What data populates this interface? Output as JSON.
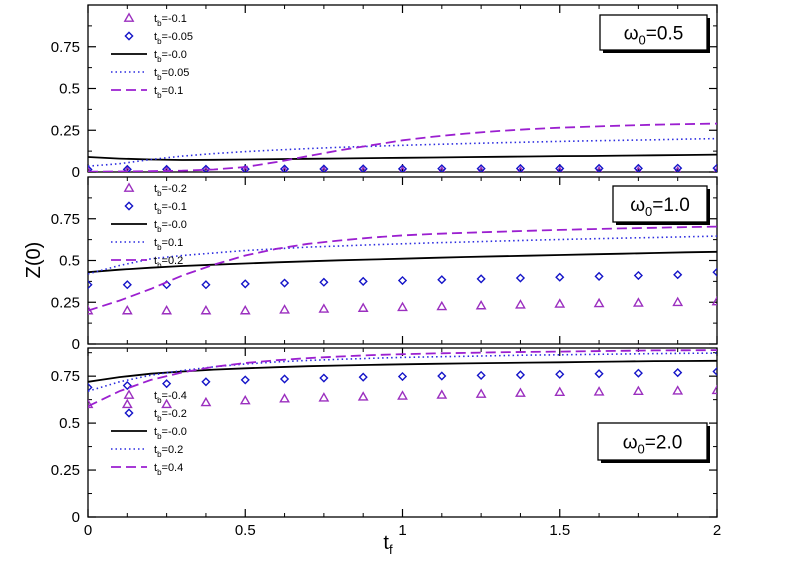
{
  "chart_data": {
    "type": "line",
    "xlabel": "t",
    "xlabel_sub": "f",
    "ylabel": "Z(0)",
    "xlim": [
      0,
      2
    ],
    "x_ticks": [
      "0",
      "0.5",
      "1",
      "1.5",
      "2"
    ],
    "line_x": [
      0,
      0.1,
      0.2,
      0.3,
      0.4,
      0.5,
      0.6,
      0.7,
      0.8,
      0.9,
      1.0,
      1.1,
      1.2,
      1.3,
      1.4,
      1.5,
      1.6,
      1.7,
      1.8,
      1.9,
      2.0
    ],
    "marker_x": [
      0,
      0.125,
      0.25,
      0.375,
      0.5,
      0.625,
      0.75,
      0.875,
      1.0,
      1.125,
      1.25,
      1.375,
      1.5,
      1.625,
      1.75,
      1.875,
      2.0
    ],
    "colors": {
      "triangle": "#9b2fbf",
      "diamond": "#1414c8",
      "solid": "#000000",
      "dotted": "#2a2ae0",
      "dashed": "#9b1fd0"
    },
    "panels": [
      {
        "name": "omega-0.5",
        "omega_label": "ω",
        "omega_sub": "0",
        "omega_value": "=0.5",
        "ylim": [
          0,
          1
        ],
        "y_ticks": [
          "0",
          "0.25",
          "0.5",
          "0.75"
        ],
        "y_tick_values": [
          0,
          0.25,
          0.5,
          0.75
        ],
        "series": [
          {
            "name": "t_b=-0.1",
            "label_main": "t",
            "label_sub": "b",
            "label_tail": "=-0.1",
            "style": "triangle",
            "values": [
              0.003,
              0.003,
              0.003,
              0.003,
              0.003,
              0.003,
              0.003,
              0.003,
              0.003,
              0.003,
              0.003,
              0.003,
              0.003,
              0.003,
              0.003,
              0.003,
              0.003
            ]
          },
          {
            "name": "t_b=-0.05",
            "label_main": "t",
            "label_sub": "b",
            "label_tail": "=-0.05",
            "style": "diamond",
            "values": [
              0.015,
              0.016,
              0.016,
              0.017,
              0.017,
              0.018,
              0.018,
              0.019,
              0.019,
              0.02,
              0.02,
              0.021,
              0.021,
              0.022,
              0.022,
              0.023,
              0.023
            ]
          },
          {
            "name": "t_b=-0.0",
            "label_main": "t",
            "label_sub": "b",
            "label_tail": "=-0.0",
            "style": "solid",
            "values": [
              0.09,
              0.08,
              0.075,
              0.072,
              0.073,
              0.075,
              0.077,
              0.079,
              0.081,
              0.083,
              0.085,
              0.087,
              0.089,
              0.091,
              0.093,
              0.095,
              0.096,
              0.098,
              0.1,
              0.102,
              0.104
            ]
          },
          {
            "name": "t_b=0.05",
            "label_main": "t",
            "label_sub": "b",
            "label_tail": "=0.05",
            "style": "dotted",
            "values": [
              0.035,
              0.05,
              0.075,
              0.095,
              0.11,
              0.122,
              0.132,
              0.14,
              0.148,
              0.154,
              0.16,
              0.165,
              0.17,
              0.175,
              0.179,
              0.183,
              0.187,
              0.19,
              0.193,
              0.197,
              0.2
            ]
          },
          {
            "name": "t_b=0.1",
            "label_main": "t",
            "label_sub": "b",
            "label_tail": "=0.1",
            "style": "dashed",
            "values": [
              0.002,
              0.003,
              0.005,
              0.008,
              0.015,
              0.03,
              0.06,
              0.095,
              0.13,
              0.16,
              0.19,
              0.212,
              0.23,
              0.245,
              0.256,
              0.265,
              0.272,
              0.278,
              0.283,
              0.287,
              0.29
            ]
          }
        ]
      },
      {
        "name": "omega-1.0",
        "omega_label": "ω",
        "omega_sub": "0",
        "omega_value": "=1.0",
        "ylim": [
          0,
          1
        ],
        "y_ticks": [
          "0",
          "0.25",
          "0.5",
          "0.75"
        ],
        "y_tick_values": [
          0,
          0.25,
          0.5,
          0.75
        ],
        "series": [
          {
            "name": "t_b=-0.2",
            "label_main": "t",
            "label_sub": "b",
            "label_tail": "=-0.2",
            "style": "triangle",
            "values": [
              0.2,
              0.2,
              0.2,
              0.2,
              0.2,
              0.205,
              0.21,
              0.215,
              0.22,
              0.225,
              0.23,
              0.235,
              0.24,
              0.243,
              0.246,
              0.25,
              0.254
            ]
          },
          {
            "name": "t_b=-0.1",
            "label_main": "t",
            "label_sub": "b",
            "label_tail": "=-0.1",
            "style": "diamond",
            "values": [
              0.355,
              0.355,
              0.355,
              0.355,
              0.36,
              0.365,
              0.37,
              0.375,
              0.38,
              0.385,
              0.39,
              0.395,
              0.4,
              0.405,
              0.41,
              0.415,
              0.43
            ]
          },
          {
            "name": "t_b=-0.0",
            "label_main": "t",
            "label_sub": "b",
            "label_tail": "=-0.0",
            "style": "solid",
            "values": [
              0.43,
              0.445,
              0.457,
              0.467,
              0.475,
              0.482,
              0.489,
              0.495,
              0.501,
              0.506,
              0.511,
              0.516,
              0.521,
              0.525,
              0.529,
              0.533,
              0.537,
              0.541,
              0.545,
              0.549,
              0.552
            ]
          },
          {
            "name": "t_b=0.1",
            "label_main": "t",
            "label_sub": "b",
            "label_tail": "=0.1",
            "style": "dotted",
            "values": [
              0.42,
              0.47,
              0.51,
              0.53,
              0.545,
              0.56,
              0.57,
              0.58,
              0.587,
              0.594,
              0.6,
              0.606,
              0.611,
              0.616,
              0.621,
              0.626,
              0.63,
              0.634,
              0.638,
              0.642,
              0.646
            ]
          },
          {
            "name": "t_b=0.2",
            "label_main": "t",
            "label_sub": "b",
            "label_tail": "=0.2",
            "style": "dashed",
            "values": [
              0.2,
              0.26,
              0.33,
              0.41,
              0.475,
              0.53,
              0.57,
              0.6,
              0.62,
              0.637,
              0.65,
              0.659,
              0.666,
              0.672,
              0.678,
              0.683,
              0.688,
              0.692,
              0.696,
              0.7,
              0.703
            ]
          }
        ]
      },
      {
        "name": "omega-2.0",
        "omega_label": "ω",
        "omega_sub": "0",
        "omega_value": "=2.0",
        "ylim": [
          0,
          0.9
        ],
        "y_ticks": [
          "0",
          "0.25",
          "0.5",
          "0.75"
        ],
        "y_tick_values": [
          0,
          0.25,
          0.5,
          0.75
        ],
        "series": [
          {
            "name": "t_b=-0.4",
            "label_main": "t",
            "label_sub": "b",
            "label_tail": "=-0.4",
            "style": "triangle",
            "values": [
              0.6,
              0.6,
              0.6,
              0.61,
              0.62,
              0.63,
              0.635,
              0.64,
              0.645,
              0.65,
              0.655,
              0.66,
              0.665,
              0.667,
              0.67,
              0.672,
              0.675
            ]
          },
          {
            "name": "t_b=-0.2",
            "label_main": "t",
            "label_sub": "b",
            "label_tail": "=-0.2",
            "style": "diamond",
            "values": [
              0.69,
              0.7,
              0.71,
              0.72,
              0.73,
              0.735,
              0.74,
              0.745,
              0.748,
              0.751,
              0.754,
              0.757,
              0.76,
              0.763,
              0.766,
              0.769,
              0.775
            ]
          },
          {
            "name": "t_b=-0.0",
            "label_main": "t",
            "label_sub": "b",
            "label_tail": "=-0.0",
            "style": "solid",
            "values": [
              0.72,
              0.745,
              0.763,
              0.775,
              0.785,
              0.792,
              0.798,
              0.803,
              0.807,
              0.81,
              0.813,
              0.816,
              0.818,
              0.82,
              0.822,
              0.824,
              0.826,
              0.828,
              0.83,
              0.831,
              0.832
            ]
          },
          {
            "name": "t_b=0.2",
            "label_main": "t",
            "label_sub": "b",
            "label_tail": "=0.2",
            "style": "dotted",
            "values": [
              0.67,
              0.72,
              0.755,
              0.78,
              0.8,
              0.815,
              0.826,
              0.834,
              0.84,
              0.845,
              0.85,
              0.853,
              0.856,
              0.859,
              0.862,
              0.864,
              0.866,
              0.868,
              0.87,
              0.872,
              0.873
            ]
          },
          {
            "name": "t_b=0.4",
            "label_main": "t",
            "label_sub": "b",
            "label_tail": "=0.4",
            "style": "dashed",
            "values": [
              0.59,
              0.67,
              0.73,
              0.77,
              0.8,
              0.82,
              0.835,
              0.846,
              0.855,
              0.862,
              0.867,
              0.871,
              0.874,
              0.877,
              0.879,
              0.881,
              0.883,
              0.885,
              0.887,
              0.888,
              0.889
            ]
          }
        ]
      }
    ]
  }
}
